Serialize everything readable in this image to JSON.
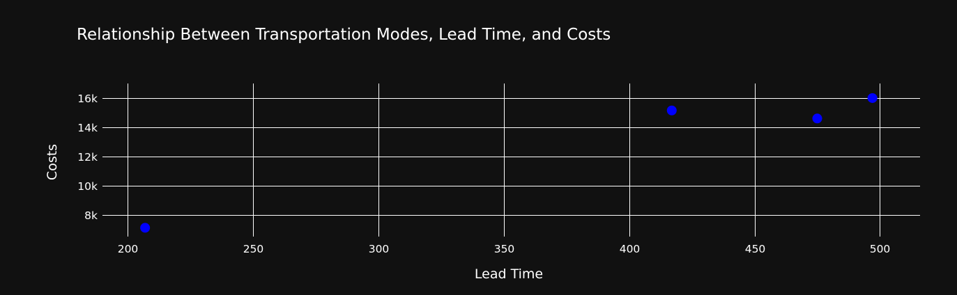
{
  "chart_data": {
    "type": "scatter",
    "title": "Relationship Between Transportation Modes, Lead Time, and Costs",
    "xlabel": "Lead Time",
    "ylabel": "Costs",
    "xlim": [
      190,
      516
    ],
    "ylim": [
      6500,
      17000
    ],
    "xticks": [
      200,
      250,
      300,
      350,
      400,
      450,
      500
    ],
    "xtick_labels": [
      "200",
      "250",
      "300",
      "350",
      "400",
      "450",
      "500"
    ],
    "yticks": [
      8000,
      10000,
      12000,
      14000,
      16000
    ],
    "ytick_labels": [
      "8k",
      "10k",
      "12k",
      "14k",
      "16k"
    ],
    "grid": true,
    "series": [
      {
        "x": [
          207,
          417,
          475,
          497
        ],
        "y": [
          7100,
          15150,
          14600,
          16000
        ]
      }
    ],
    "colors": {
      "background": "#111111",
      "marker": "#0000ff",
      "grid": "#ffffff",
      "text": "#ffffff"
    }
  }
}
